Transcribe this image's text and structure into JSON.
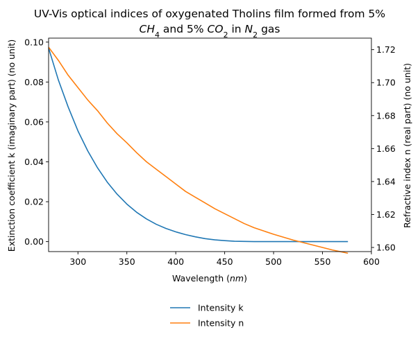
{
  "chart_data": {
    "type": "line",
    "title_line1": "UV-Vis optical indices of oxygenated Tholins film formed from 5%",
    "title_line2": {
      "parts": [
        {
          "text": "CH",
          "style": "italic"
        },
        {
          "text": "4",
          "style": "sub"
        },
        {
          "text": " and 5% ",
          "style": "normal"
        },
        {
          "text": "CO",
          "style": "italic"
        },
        {
          "text": "2",
          "style": "sub"
        },
        {
          "text": " in ",
          "style": "normal"
        },
        {
          "text": "N",
          "style": "italic"
        },
        {
          "text": "2",
          "style": "sub"
        },
        {
          "text": " gas",
          "style": "normal"
        }
      ]
    },
    "xlabel": {
      "prefix": "Wavelength (",
      "italic": "nm",
      "suffix": ")"
    },
    "ylabel_left": "Extinction coefficient k (imaginary part) (no unit)",
    "ylabel_right": "Refractive index n (real part) (no unit)",
    "xlim": [
      270,
      600
    ],
    "ylim_left": [
      -0.005,
      0.102
    ],
    "ylim_right": [
      1.5975,
      1.727
    ],
    "xticks": [
      300,
      350,
      400,
      450,
      500,
      550,
      600
    ],
    "yticks_left": [
      0.0,
      0.02,
      0.04,
      0.06,
      0.08,
      0.1
    ],
    "yticks_left_labels": [
      "0.00",
      "0.02",
      "0.04",
      "0.06",
      "0.08",
      "0.10"
    ],
    "yticks_right": [
      1.6,
      1.62,
      1.64,
      1.66,
      1.68,
      1.7,
      1.72
    ],
    "yticks_right_labels": [
      "1.60",
      "1.62",
      "1.64",
      "1.66",
      "1.68",
      "1.70",
      "1.72"
    ],
    "grid": false,
    "legend_position": "bottom-center-below",
    "series": [
      {
        "name": "Intensity k",
        "axis": "left",
        "color": "#1f77b4",
        "x": [
          270,
          280,
          290,
          300,
          310,
          320,
          330,
          340,
          350,
          360,
          370,
          380,
          390,
          400,
          410,
          420,
          430,
          440,
          450,
          460,
          470,
          480,
          490,
          500,
          520,
          540,
          560,
          576
        ],
        "y": [
          0.097,
          0.081,
          0.0675,
          0.0555,
          0.0455,
          0.037,
          0.0298,
          0.0238,
          0.0188,
          0.0147,
          0.0114,
          0.0087,
          0.0066,
          0.0049,
          0.0035,
          0.0024,
          0.0015,
          0.0009,
          0.0005,
          0.0002,
          0.0001,
          0.0,
          0.0,
          0.0,
          0.0,
          0.0,
          0.0,
          0.0
        ]
      },
      {
        "name": "Intensity n",
        "axis": "right",
        "color": "#ff7f0e",
        "x": [
          270,
          280,
          290,
          300,
          310,
          320,
          330,
          340,
          350,
          360,
          370,
          380,
          390,
          400,
          410,
          420,
          430,
          440,
          450,
          460,
          470,
          480,
          490,
          500,
          520,
          540,
          560,
          576
        ],
        "y": [
          1.7215,
          1.7135,
          1.7045,
          1.697,
          1.6895,
          1.683,
          1.6755,
          1.669,
          1.6635,
          1.6575,
          1.652,
          1.6475,
          1.643,
          1.6385,
          1.634,
          1.6305,
          1.627,
          1.6235,
          1.6205,
          1.6175,
          1.6145,
          1.612,
          1.61,
          1.608,
          1.6045,
          1.6015,
          1.5985,
          1.5965
        ]
      }
    ]
  }
}
